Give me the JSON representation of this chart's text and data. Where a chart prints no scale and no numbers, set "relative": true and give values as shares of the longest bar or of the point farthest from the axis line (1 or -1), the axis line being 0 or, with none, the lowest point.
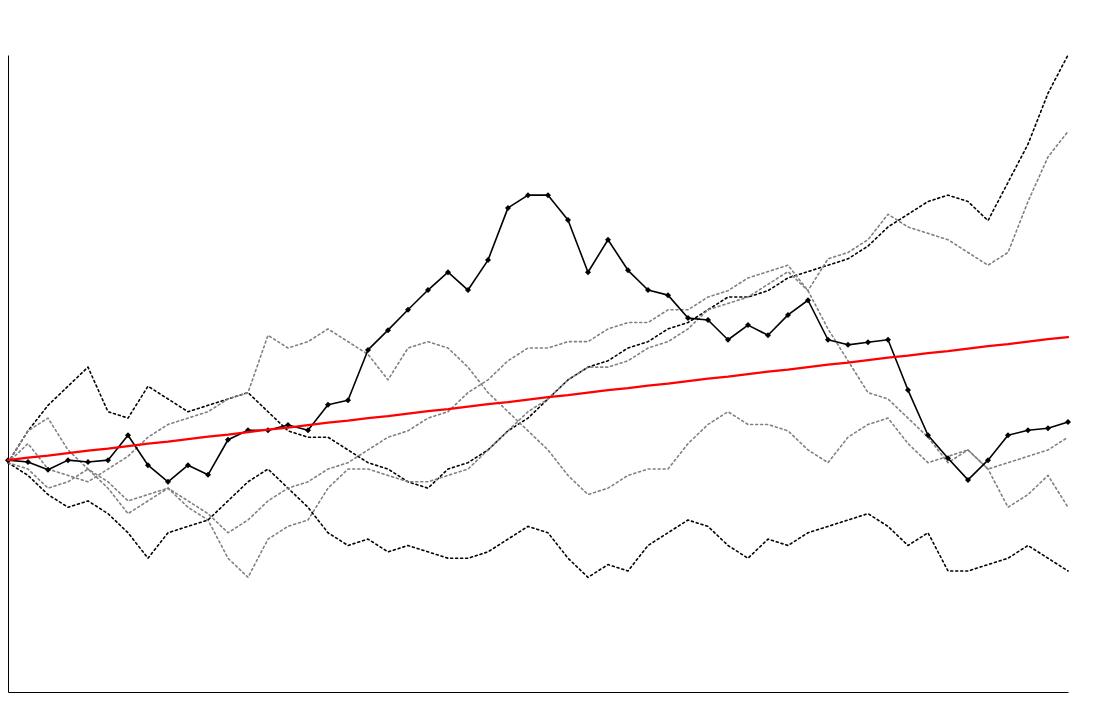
{
  "chart_data": {
    "type": "line",
    "relative": true,
    "grid": false,
    "tick_labels": false,
    "categories": [
      null,
      null,
      null,
      null,
      null,
      null,
      null,
      null,
      null,
      null,
      null,
      null,
      null,
      null,
      null,
      null,
      null,
      null,
      null,
      null,
      null,
      null,
      null,
      null,
      null,
      null,
      null,
      null,
      null,
      null,
      null,
      null,
      null,
      null,
      null,
      null,
      null,
      null,
      null,
      null,
      null,
      null,
      null,
      null,
      null,
      null,
      null,
      null,
      null,
      null,
      null,
      null,
      null,
      null
    ],
    "series": [
      {
        "color": "#000000",
        "line_style": "dotted",
        "marker": "none",
        "values": [
          0.36,
          0.41,
          0.45,
          0.48,
          0.51,
          0.44,
          0.43,
          0.48,
          0.46,
          0.44,
          0.45,
          0.46,
          0.47,
          0.44,
          0.41,
          0.4,
          0.4,
          0.38,
          0.36,
          0.35,
          0.33,
          0.32,
          0.35,
          0.36,
          0.38,
          0.41,
          0.43,
          0.46,
          0.49,
          0.51,
          0.52,
          0.54,
          0.55,
          0.57,
          0.58,
          0.6,
          0.62,
          0.62,
          0.63,
          0.65,
          0.66,
          0.67,
          0.68,
          0.7,
          0.73,
          0.75,
          0.77,
          0.78,
          0.77,
          0.74,
          0.8,
          0.86,
          0.94,
          1.0
        ]
      },
      {
        "color": "#808080",
        "line_style": "dotted",
        "marker": "none",
        "values": [
          0.36,
          0.41,
          0.43,
          0.38,
          0.35,
          0.33,
          0.3,
          0.31,
          0.32,
          0.29,
          0.27,
          0.21,
          0.18,
          0.24,
          0.26,
          0.27,
          0.32,
          0.35,
          0.35,
          0.34,
          0.33,
          0.33,
          0.34,
          0.35,
          0.38,
          0.41,
          0.44,
          0.46,
          0.49,
          0.51,
          0.51,
          0.52,
          0.54,
          0.55,
          0.57,
          0.6,
          0.61,
          0.62,
          0.64,
          0.66,
          0.63,
          0.68,
          0.69,
          0.71,
          0.75,
          0.73,
          0.72,
          0.71,
          0.69,
          0.67,
          0.69,
          0.77,
          0.84,
          0.88
        ]
      },
      {
        "color": "#808080",
        "line_style": "dotted",
        "marker": "none",
        "values": [
          0.36,
          0.39,
          0.35,
          0.34,
          0.33,
          0.35,
          0.37,
          0.4,
          0.42,
          0.43,
          0.44,
          0.46,
          0.47,
          0.56,
          0.54,
          0.55,
          0.57,
          0.55,
          0.53,
          0.49,
          0.54,
          0.55,
          0.54,
          0.51,
          0.47,
          0.44,
          0.41,
          0.38,
          0.34,
          0.31,
          0.32,
          0.34,
          0.35,
          0.35,
          0.39,
          0.42,
          0.44,
          0.42,
          0.42,
          0.41,
          0.38,
          0.36,
          0.4,
          0.42,
          0.43,
          0.39,
          0.36,
          0.37,
          0.38,
          0.35,
          0.29,
          0.31,
          0.34,
          0.29
        ]
      },
      {
        "color": "#000000",
        "line_style": "dotted",
        "marker": "none",
        "values": [
          0.36,
          0.34,
          0.31,
          0.29,
          0.3,
          0.28,
          0.25,
          0.21,
          0.25,
          0.26,
          0.27,
          0.3,
          0.33,
          0.35,
          0.32,
          0.29,
          0.25,
          0.23,
          0.24,
          0.22,
          0.23,
          0.22,
          0.21,
          0.21,
          0.22,
          0.24,
          0.26,
          0.25,
          0.21,
          0.18,
          0.2,
          0.19,
          0.23,
          0.25,
          0.27,
          0.26,
          0.23,
          0.21,
          0.24,
          0.23,
          0.25,
          0.26,
          0.27,
          0.28,
          0.26,
          0.23,
          0.25,
          0.19,
          0.19,
          0.2,
          0.21,
          0.23,
          0.21,
          0.19
        ]
      },
      {
        "color": "#808080",
        "line_style": "dotted",
        "marker": "none",
        "values": [
          0.36,
          0.35,
          0.32,
          0.33,
          0.35,
          0.32,
          0.28,
          0.3,
          0.32,
          0.3,
          0.28,
          0.25,
          0.27,
          0.3,
          0.32,
          0.33,
          0.35,
          0.36,
          0.38,
          0.4,
          0.41,
          0.43,
          0.44,
          0.47,
          0.49,
          0.52,
          0.54,
          0.54,
          0.55,
          0.55,
          0.57,
          0.58,
          0.58,
          0.6,
          0.6,
          0.62,
          0.63,
          0.65,
          0.66,
          0.67,
          0.63,
          0.57,
          0.52,
          0.47,
          0.46,
          0.43,
          0.4,
          0.36,
          0.38,
          0.35,
          0.36,
          0.37,
          0.38,
          0.4
        ]
      },
      {
        "color": "#000000",
        "line_style": "solid",
        "marker": "diamond",
        "values": [
          0.364,
          0.361,
          0.349,
          0.364,
          0.361,
          0.364,
          0.403,
          0.356,
          0.33,
          0.356,
          0.341,
          0.396,
          0.411,
          0.411,
          0.419,
          0.411,
          0.451,
          0.458,
          0.537,
          0.568,
          0.6,
          0.631,
          0.659,
          0.631,
          0.678,
          0.76,
          0.78,
          0.78,
          0.741,
          0.659,
          0.71,
          0.662,
          0.631,
          0.623,
          0.587,
          0.584,
          0.553,
          0.576,
          0.56,
          0.592,
          0.615,
          0.553,
          0.545,
          0.549,
          0.553,
          0.474,
          0.403,
          0.367,
          0.333,
          0.364,
          0.403,
          0.411,
          0.414,
          0.424
        ]
      },
      {
        "color": "#ff0000",
        "line_style": "solid",
        "marker": "none",
        "values": [
          0.364,
          0.368,
          0.371,
          0.375,
          0.379,
          0.382,
          0.386,
          0.39,
          0.393,
          0.397,
          0.401,
          0.404,
          0.408,
          0.412,
          0.415,
          0.419,
          0.423,
          0.426,
          0.43,
          0.433,
          0.437,
          0.441,
          0.444,
          0.448,
          0.452,
          0.455,
          0.459,
          0.463,
          0.466,
          0.47,
          0.474,
          0.477,
          0.481,
          0.484,
          0.488,
          0.492,
          0.495,
          0.499,
          0.503,
          0.506,
          0.51,
          0.514,
          0.517,
          0.521,
          0.525,
          0.528,
          0.532,
          0.535,
          0.539,
          0.543,
          0.546,
          0.55,
          0.554,
          0.557
        ]
      }
    ]
  }
}
